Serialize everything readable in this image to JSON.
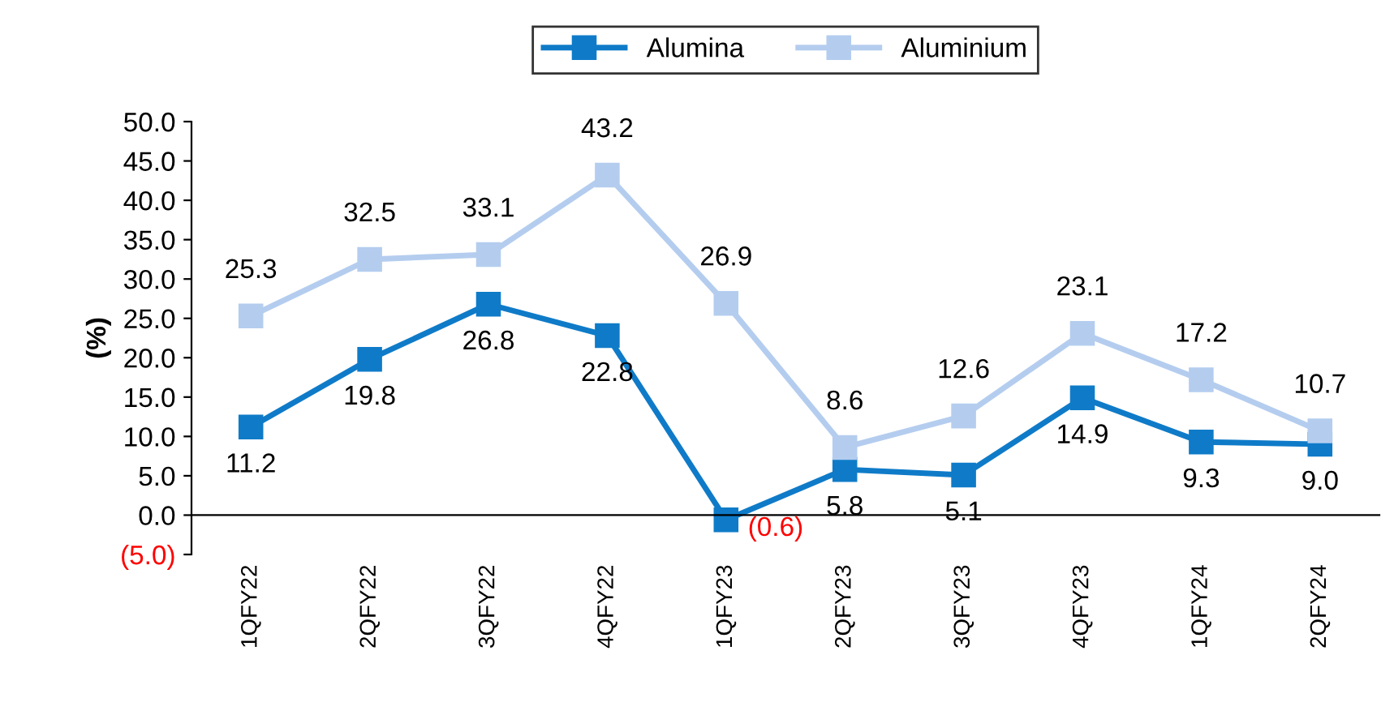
{
  "chart_data": {
    "type": "line",
    "ylabel": "(%)",
    "categories": [
      "1QFY22",
      "2QFY22",
      "3QFY22",
      "4QFY22",
      "1QFY23",
      "2QFY23",
      "3QFY23",
      "4QFY23",
      "1QFY24",
      "2QFY24"
    ],
    "series": [
      {
        "name": "Alumina",
        "color": "#0f7bc8",
        "values": [
          11.2,
          19.8,
          26.8,
          22.8,
          -0.6,
          5.8,
          5.1,
          14.9,
          9.3,
          9.0
        ],
        "value_labels": [
          "11.2",
          "19.8",
          "26.8",
          "22.8",
          "(0.6)",
          "5.8",
          "5.1",
          "14.9",
          "9.3",
          "9.0"
        ]
      },
      {
        "name": "Aluminium",
        "color": "#b4cdef",
        "values": [
          25.3,
          32.5,
          33.1,
          43.2,
          26.9,
          8.6,
          12.6,
          23.1,
          17.2,
          10.7
        ],
        "value_labels": [
          "25.3",
          "32.5",
          "33.1",
          "43.2",
          "26.9",
          "8.6",
          "12.6",
          "23.1",
          "17.2",
          "10.7"
        ]
      }
    ],
    "ylim": [
      -5,
      50
    ],
    "yticks": [
      {
        "value": -5,
        "label": "(5.0)"
      },
      {
        "value": 0,
        "label": "0.0"
      },
      {
        "value": 5,
        "label": "5.0"
      },
      {
        "value": 10,
        "label": "10.0"
      },
      {
        "value": 15,
        "label": "15.0"
      },
      {
        "value": 20,
        "label": "20.0"
      },
      {
        "value": 25,
        "label": "25.0"
      },
      {
        "value": 30,
        "label": "30.0"
      },
      {
        "value": 35,
        "label": "35.0"
      },
      {
        "value": 40,
        "label": "40.0"
      },
      {
        "value": 45,
        "label": "45.0"
      },
      {
        "value": 50,
        "label": "50.0"
      }
    ],
    "marker": "square",
    "line_style": "solid",
    "grid": false,
    "legend": "top"
  }
}
